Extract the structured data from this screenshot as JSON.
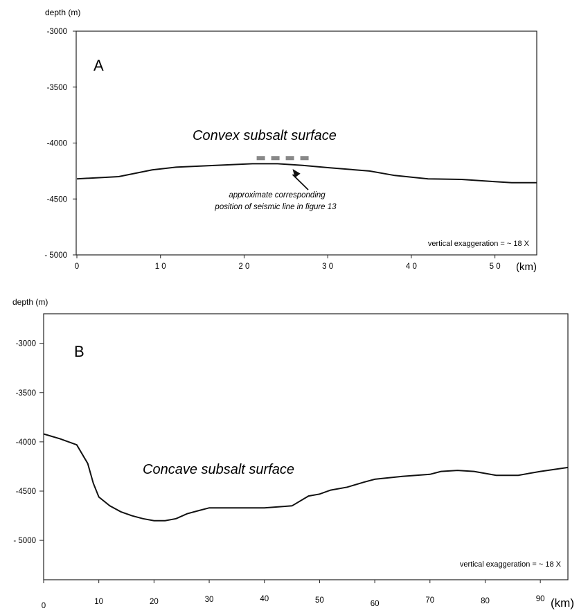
{
  "chart_data": [
    {
      "type": "line",
      "panel": "A",
      "ylabel": "depth (m)",
      "xlabel": "(km)",
      "xlim": [
        0,
        55
      ],
      "ylim": [
        -5000,
        -3000
      ],
      "x_ticks": [
        "0",
        "1 0",
        "2 0",
        "3 0",
        "4 0",
        "5 0"
      ],
      "y_ticks": [
        "-3000",
        "-3500",
        "-4000",
        "-4500",
        "- 5000"
      ],
      "grid": false,
      "curve_title": "Convex subsalt surface",
      "series": [
        {
          "x": [
            0,
            5,
            9,
            12,
            15,
            18,
            21,
            24,
            27,
            30,
            35,
            38,
            42,
            46,
            50,
            52,
            55
          ],
          "y": [
            -4320,
            -4300,
            -4240,
            -4215,
            -4205,
            -4195,
            -4185,
            -4185,
            -4200,
            -4220,
            -4250,
            -4290,
            -4320,
            -4325,
            -4345,
            -4355,
            -4355
          ]
        }
      ],
      "marker_segment": {
        "x": [
          21.5,
          28
        ],
        "y": -4135
      },
      "annotation": {
        "lines": [
          "approximate corresponding",
          "position of seismic line in figure 13"
        ],
        "points_to": {
          "x": 25.8,
          "y": -4195
        }
      },
      "note": "vertical  exaggeration = ~ 18 X"
    },
    {
      "type": "line",
      "panel": "B",
      "ylabel": "depth (m)",
      "xlabel": "(km)",
      "xlim": [
        0,
        95
      ],
      "ylim": [
        -5400,
        -2700
      ],
      "x_ticks": [
        "0",
        "10",
        "20",
        "30",
        "40",
        "50",
        "60",
        "70",
        "80",
        "90"
      ],
      "y_ticks": [
        "-3000",
        "-3500",
        "-4000",
        "-4500",
        "- 5000"
      ],
      "grid": false,
      "curve_title": "Concave subsalt surface",
      "series": [
        {
          "x": [
            0,
            3,
            6,
            8,
            9,
            10,
            12,
            14,
            16,
            18,
            20,
            22,
            24,
            26,
            28,
            30,
            35,
            40,
            45,
            48,
            50,
            52,
            55,
            58,
            60,
            65,
            70,
            72,
            75,
            78,
            82,
            86,
            90,
            95
          ],
          "y": [
            -3920,
            -3970,
            -4030,
            -4220,
            -4420,
            -4560,
            -4650,
            -4710,
            -4750,
            -4780,
            -4800,
            -4800,
            -4780,
            -4730,
            -4700,
            -4670,
            -4670,
            -4670,
            -4650,
            -4550,
            -4530,
            -4490,
            -4460,
            -4410,
            -4380,
            -4350,
            -4330,
            -4300,
            -4290,
            -4300,
            -4340,
            -4340,
            -4300,
            -4260
          ]
        }
      ],
      "note": "vertical  exaggeration = ~ 18 X"
    }
  ]
}
